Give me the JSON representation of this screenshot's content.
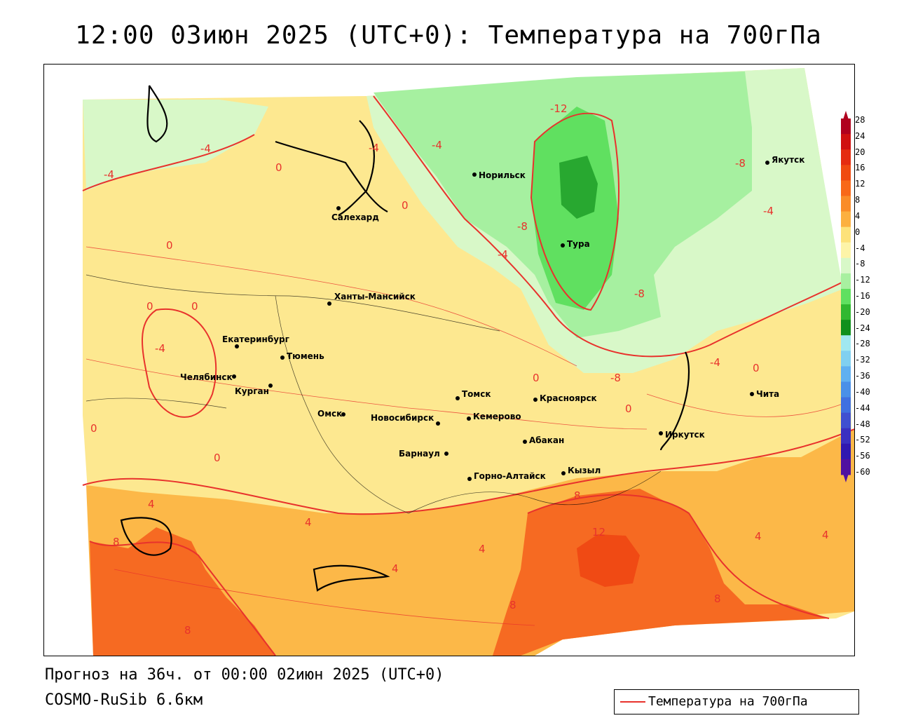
{
  "title": "12:00 03июн 2025 (UTC+0): Температура на 700гПа",
  "footer": {
    "forecast": "Прогноз на 36ч. от 00:00 02июн 2025 (UTC+0)",
    "model": "COSMO-RuSib 6.6км"
  },
  "legend": {
    "label": "Температура на 700гПа",
    "line_color": "#e8322c"
  },
  "scale": {
    "labels": [
      "28",
      "24",
      "20",
      "16",
      "12",
      "8",
      "4",
      "0",
      "-4",
      "-8",
      "-12",
      "-16",
      "-20",
      "-24",
      "-28",
      "-32",
      "-36",
      "-40",
      "-44",
      "-48",
      "-52",
      "-56",
      "-60"
    ],
    "colors": [
      "#b0001e",
      "#d01010",
      "#e52c10",
      "#f04a10",
      "#f86818",
      "#fa8c28",
      "#fcb040",
      "#fde27a",
      "#fdf4a8",
      "#d8f8c8",
      "#a8f0a0",
      "#60e060",
      "#30b830",
      "#10901c",
      "#a0e8f0",
      "#80d0f0",
      "#60b0f0",
      "#4a90e8",
      "#4070e0",
      "#4050d0",
      "#3a30c0",
      "#3018b0",
      "#5010a0"
    ]
  },
  "cities": [
    {
      "name": "Норильск"
    },
    {
      "name": "Якутск"
    },
    {
      "name": "Салехард"
    },
    {
      "name": "Тура"
    },
    {
      "name": "Ханты-Мансийск"
    },
    {
      "name": "Екатеринбург"
    },
    {
      "name": "Тюмень"
    },
    {
      "name": "Челябинск"
    },
    {
      "name": "Курган"
    },
    {
      "name": "Омск"
    },
    {
      "name": "Томск"
    },
    {
      "name": "Красноярск"
    },
    {
      "name": "Новосибирск"
    },
    {
      "name": "Кемерово"
    },
    {
      "name": "Абакан"
    },
    {
      "name": "Барнаул"
    },
    {
      "name": "Горно-Алтайск"
    },
    {
      "name": "Кызыл"
    },
    {
      "name": "Иркутск"
    },
    {
      "name": "Чита"
    }
  ],
  "isotherm_labels": [
    "-12",
    "-8",
    "-8",
    "-8",
    "-8",
    "-4",
    "-4",
    "-4",
    "-4",
    "-4",
    "-4",
    "-4",
    "0",
    "0",
    "0",
    "0",
    "0",
    "0",
    "0",
    "0",
    "0",
    "4",
    "4",
    "4",
    "4",
    "4",
    "4",
    "8",
    "8",
    "8",
    "8",
    "8",
    "12",
    "0",
    "-4"
  ]
}
